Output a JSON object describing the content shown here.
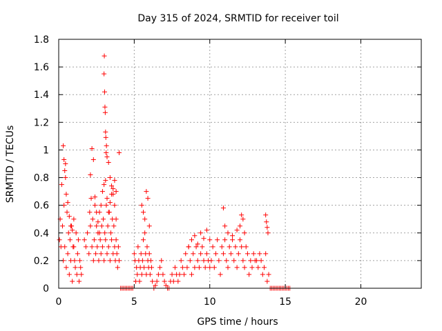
{
  "chart_data": {
    "type": "scatter",
    "title": "Day 315 of 2024, SRMTID for receiver toil",
    "xlabel": "GPS time / hours",
    "ylabel": "SRMTID / TECUs",
    "xlim": [
      0,
      24
    ],
    "ylim": [
      0,
      1.8
    ],
    "xticks": [
      0,
      5,
      10,
      15,
      20
    ],
    "yticks": [
      0,
      0.2,
      0.4,
      0.6,
      0.8,
      1,
      1.2,
      1.4,
      1.6,
      1.8
    ],
    "xtick_labels": [
      "0",
      "5",
      "10",
      "15",
      "20"
    ],
    "ytick_labels": [
      "0",
      "0.2",
      "0.4",
      "0.6",
      "0.8",
      "1",
      "1.2",
      "1.4",
      "1.6",
      "1.8"
    ],
    "grid": true,
    "marker": "+",
    "marker_color": "#ff0000",
    "series": [
      {
        "name": "SRMTID",
        "x": [
          0.05,
          0.1,
          0.15,
          0.2,
          0.25,
          0.3,
          0.35,
          0.4,
          0.45,
          0.5,
          0.55,
          0.6,
          0.65,
          0.7,
          0.75,
          0.8,
          0.85,
          0.9,
          0.95,
          1.0,
          1.05,
          1.1,
          1.15,
          1.2,
          1.25,
          1.3,
          1.35,
          1.4,
          1.45,
          1.5,
          0.3,
          0.35,
          0.4,
          0.45,
          0.5,
          0.6,
          0.7,
          0.8,
          0.9,
          1.0,
          1.7,
          1.8,
          1.9,
          2.0,
          2.05,
          2.1,
          2.15,
          2.2,
          2.25,
          2.3,
          2.35,
          2.4,
          2.45,
          2.5,
          2.55,
          2.6,
          2.65,
          2.7,
          2.75,
          2.8,
          2.85,
          2.9,
          2.95,
          3.0,
          3.05,
          3.1,
          3.15,
          3.2,
          3.25,
          3.3,
          3.35,
          3.4,
          3.45,
          3.5,
          3.55,
          3.6,
          3.65,
          3.7,
          3.75,
          3.8,
          3.85,
          3.9,
          3.95,
          4.0,
          2.1,
          2.2,
          2.3,
          2.4,
          2.5,
          2.6,
          2.7,
          2.8,
          2.9,
          3.0,
          3.1,
          3.2,
          3.3,
          3.4,
          3.5,
          3.6,
          3.7,
          3.8,
          3.0,
          3.02,
          3.04,
          3.06,
          3.08,
          3.1,
          3.12,
          3.14,
          3.16,
          3.2,
          3.3,
          3.4,
          3.5,
          3.6,
          3.7,
          3.8,
          4.0,
          4.1,
          4.2,
          4.3,
          4.4,
          4.5,
          4.6,
          4.7,
          4.8,
          4.9,
          5.0,
          5.05,
          5.1,
          5.15,
          5.2,
          5.25,
          5.3,
          5.35,
          5.4,
          5.45,
          5.5,
          5.55,
          5.6,
          5.65,
          5.7,
          5.75,
          5.8,
          5.85,
          5.9,
          5.95,
          6.0,
          6.05,
          6.1,
          6.15,
          6.2,
          5.5,
          5.6,
          5.7,
          5.8,
          5.9,
          6.0,
          6.3,
          6.4,
          6.5,
          6.6,
          6.7,
          6.8,
          6.9,
          7.0,
          7.1,
          7.2,
          7.3,
          7.4,
          7.5,
          7.6,
          7.7,
          7.8,
          7.9,
          8.0,
          8.1,
          8.2,
          8.3,
          8.4,
          8.5,
          8.6,
          8.7,
          8.8,
          8.9,
          9.0,
          9.1,
          9.2,
          9.3,
          9.4,
          9.5,
          9.6,
          9.7,
          9.8,
          9.9,
          10.0,
          8.6,
          8.8,
          9.0,
          9.2,
          9.4,
          9.6,
          9.8,
          10.0,
          10.1,
          10.2,
          10.3,
          10.4,
          10.5,
          10.6,
          10.7,
          10.8,
          10.9,
          11.0,
          11.1,
          11.2,
          11.3,
          11.4,
          11.5,
          11.6,
          11.7,
          11.8,
          11.9,
          12.0,
          12.1,
          12.2,
          12.3,
          12.4,
          12.5,
          12.6,
          12.7,
          12.8,
          12.9,
          13.0,
          10.9,
          11.0,
          11.2,
          11.5,
          11.8,
          12.0,
          12.1,
          12.2,
          12.3,
          13.1,
          13.2,
          13.3,
          13.4,
          13.5,
          13.6,
          13.7,
          13.8,
          13.9,
          13.7,
          13.75,
          13.8,
          13.85,
          14.0,
          14.1,
          14.2,
          14.3,
          14.4,
          14.5,
          14.6,
          14.7,
          14.8,
          14.9,
          15.0,
          15.1,
          15.2,
          15.3
        ],
        "y": [
          0.35,
          0.5,
          0.3,
          0.75,
          0.45,
          0.2,
          0.6,
          0.3,
          0.9,
          0.15,
          0.55,
          0.25,
          0.4,
          0.1,
          0.35,
          0.2,
          0.45,
          0.05,
          0.3,
          0.5,
          0.2,
          0.15,
          0.4,
          0.1,
          0.25,
          0.35,
          0.05,
          0.2,
          0.15,
          0.1,
          1.03,
          0.93,
          0.85,
          0.8,
          0.68,
          0.62,
          0.52,
          0.45,
          0.42,
          0.3,
          0.35,
          0.3,
          0.4,
          0.25,
          0.55,
          0.45,
          0.65,
          0.3,
          0.5,
          0.2,
          0.35,
          0.6,
          0.25,
          0.45,
          0.3,
          0.4,
          0.2,
          0.55,
          0.35,
          0.25,
          0.45,
          0.3,
          0.5,
          0.2,
          0.4,
          0.35,
          0.6,
          0.25,
          0.45,
          0.3,
          0.55,
          0.2,
          0.4,
          0.35,
          0.5,
          0.25,
          0.45,
          0.3,
          0.2,
          0.35,
          0.25,
          0.15,
          0.3,
          0.2,
          0.82,
          1.01,
          0.93,
          0.66,
          0.55,
          0.48,
          0.4,
          0.6,
          0.7,
          0.75,
          0.78,
          0.65,
          0.55,
          0.62,
          0.68,
          0.72,
          0.78,
          0.7,
          1.55,
          1.68,
          1.42,
          1.31,
          1.27,
          1.13,
          1.09,
          0.98,
          1.03,
          0.95,
          0.91,
          0.8,
          0.74,
          0.68,
          0.6,
          0.5,
          0.98,
          0,
          0,
          0,
          0,
          0,
          0,
          0,
          0,
          0,
          0.25,
          0.2,
          0.05,
          0.15,
          0.1,
          0.3,
          0.2,
          0.05,
          0.15,
          0.25,
          0.1,
          0.2,
          0.35,
          0.15,
          0.4,
          0.25,
          0.1,
          0.3,
          0.2,
          0.15,
          0.25,
          0.1,
          0.2,
          0.15,
          0.05,
          0.6,
          0.55,
          0.5,
          0.7,
          0.65,
          0.45,
          0,
          0.02,
          0.05,
          0.1,
          0.15,
          0.2,
          0.1,
          0.05,
          0.02,
          0,
          0,
          0.05,
          0.1,
          0.05,
          0.15,
          0.1,
          0.05,
          0.1,
          0.2,
          0.15,
          0.1,
          0.25,
          0.15,
          0.3,
          0.2,
          0.1,
          0.25,
          0.15,
          0.3,
          0.2,
          0.15,
          0.25,
          0.3,
          0.2,
          0.15,
          0.25,
          0.2,
          0.15,
          0.3,
          0.35,
          0.38,
          0.32,
          0.4,
          0.36,
          0.42,
          0.35,
          0.2,
          0.3,
          0.15,
          0.25,
          0.35,
          0.2,
          0.1,
          0.3,
          0.25,
          0.35,
          0.2,
          0.15,
          0.3,
          0.25,
          0.35,
          0.2,
          0.3,
          0.15,
          0.25,
          0.35,
          0.3,
          0.2,
          0.15,
          0.3,
          0.25,
          0.1,
          0.2,
          0.15,
          0.25,
          0.2,
          0.58,
          0.45,
          0.4,
          0.38,
          0.42,
          0.45,
          0.53,
          0.5,
          0.4,
          0.2,
          0.15,
          0.25,
          0.2,
          0.1,
          0.15,
          0.25,
          0.05,
          0.1,
          0.53,
          0.48,
          0.44,
          0.4,
          0,
          0,
          0,
          0,
          0,
          0,
          0,
          0,
          0,
          0,
          0,
          0,
          0,
          0
        ]
      }
    ]
  }
}
